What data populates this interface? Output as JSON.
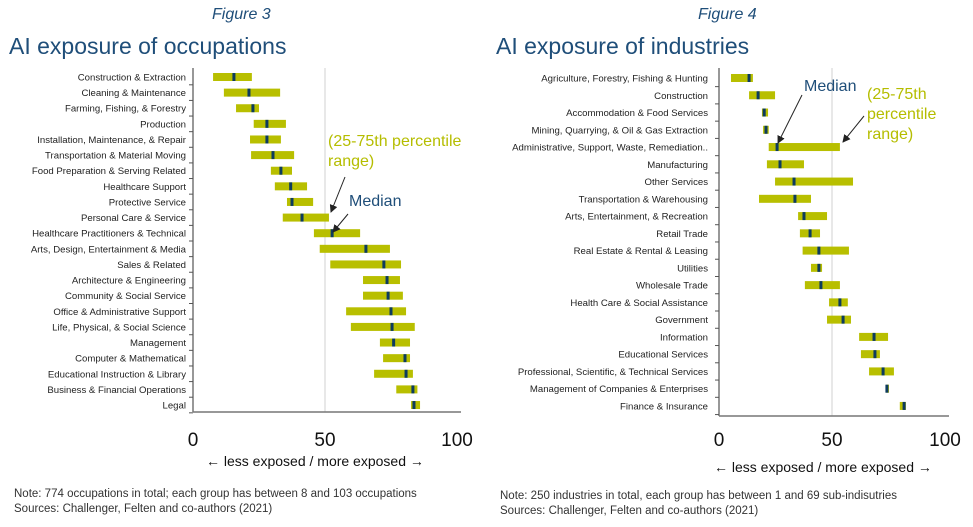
{
  "colors": {
    "range": "#b8bf00",
    "median": "#0d3b5e",
    "title": "#1f4e79",
    "annotation_range": "#b5bd00"
  },
  "chart_data": [
    {
      "type": "range-bar",
      "figure_label": "Figure 3",
      "title": "AI exposure of occupations",
      "xlabel": "← less exposed  /  more exposed →",
      "xlim": [
        0,
        100
      ],
      "xticks": [
        "0",
        "50",
        "100"
      ],
      "reference_line": 50,
      "annotations": {
        "range": "(25-75th percentile range)",
        "median": "Median"
      },
      "note": "Note: 774 occupations in total; each group has between 8 and 103 occupations",
      "source": "Sources: Challenger, Felten and co-authors (2021)",
      "categories": [
        "Construction & Extraction",
        "Cleaning & Maintenance",
        "Farming, Fishing, & Forestry",
        "Production",
        "Installation, Maintenance, & Repair",
        "Transportation & Material Moving",
        "Food Preparation & Serving Related",
        "Healthcare Support",
        "Protective Service",
        "Personal Care & Service",
        "Healthcare Practitioners & Technical",
        "Arts, Design, Entertainment & Media",
        "Sales & Related",
        "Architecture & Engineering",
        "Community & Social Service",
        "Office & Administrative Support",
        "Life, Physical, & Social Science",
        "Management",
        "Computer & Mathematical",
        "Educational Instruction & Library",
        "Business & Financial Operations",
        "Legal"
      ],
      "p25": [
        7.6,
        11.7,
        16.3,
        23.0,
        21.6,
        22.0,
        29.5,
        31.0,
        35.6,
        34.0,
        45.8,
        48.0,
        52.0,
        64.4,
        64.4,
        58.0,
        59.8,
        70.8,
        72.0,
        68.6,
        77.0,
        82.6
      ],
      "median": [
        15.5,
        21.2,
        22.7,
        28.0,
        28.0,
        30.3,
        33.3,
        37.0,
        37.5,
        41.3,
        52.7,
        65.5,
        72.3,
        73.5,
        73.9,
        75.0,
        75.4,
        76.0,
        80.3,
        80.7,
        83.3,
        83.7
      ],
      "p75": [
        22.3,
        33.0,
        25.0,
        35.2,
        33.3,
        38.3,
        37.5,
        43.2,
        45.5,
        51.5,
        63.3,
        74.6,
        78.8,
        78.4,
        79.5,
        80.7,
        84.0,
        82.2,
        82.2,
        83.3,
        85.0,
        86.0
      ]
    },
    {
      "type": "range-bar",
      "figure_label": "Figure 4",
      "title": "AI exposure of industries",
      "xlabel": "← less exposed  /  more exposed →",
      "xlim": [
        0,
        100
      ],
      "xticks": [
        "0",
        "50",
        "100"
      ],
      "reference_line": 50,
      "annotations": {
        "range": "(25-75th percentile range)",
        "median": "Median"
      },
      "note": "Note: 250 industries in total, each group has between 1 and 69 sub-indisutries",
      "source": "Sources: Challenger, Felten and co-authors (2021)",
      "categories": [
        "Agriculture, Forestry, Fishing & Hunting",
        "Construction",
        "Accommodation & Food Services",
        "Mining, Quarrying, & Oil & Gas Extraction",
        "Administrative, Support, Waste, Remediation..",
        "Manufacturing",
        "Other Services",
        "Transportation & Warehousing",
        "Arts, Entertainment, & Recreation",
        "Retail Trade",
        "Real Estate & Rental & Leasing",
        "Utilities",
        "Wholesale Trade",
        "Health Care & Social Assistance",
        "Government",
        "Information",
        "Educational Services",
        "Professional, Scientific, & Technical Services",
        "Management of Companies & Enterprises",
        "Finance & Insurance"
      ],
      "p25": [
        5.3,
        13.3,
        19.0,
        19.5,
        22.0,
        21.2,
        24.8,
        17.7,
        35.0,
        35.8,
        37.0,
        40.7,
        38.0,
        48.7,
        47.8,
        62.0,
        62.8,
        66.4,
        73.9,
        80.0
      ],
      "median": [
        13.3,
        17.3,
        20.0,
        20.8,
        25.7,
        27.0,
        33.2,
        33.6,
        37.6,
        40.3,
        44.2,
        44.2,
        45.1,
        53.5,
        54.9,
        68.6,
        69.0,
        72.6,
        74.3,
        81.9
      ],
      "p75": [
        15.0,
        24.8,
        21.7,
        22.0,
        53.5,
        37.6,
        59.3,
        40.7,
        47.8,
        44.7,
        57.5,
        45.6,
        53.5,
        57.0,
        58.4,
        74.8,
        71.2,
        77.4,
        75.2,
        82.7
      ]
    }
  ]
}
